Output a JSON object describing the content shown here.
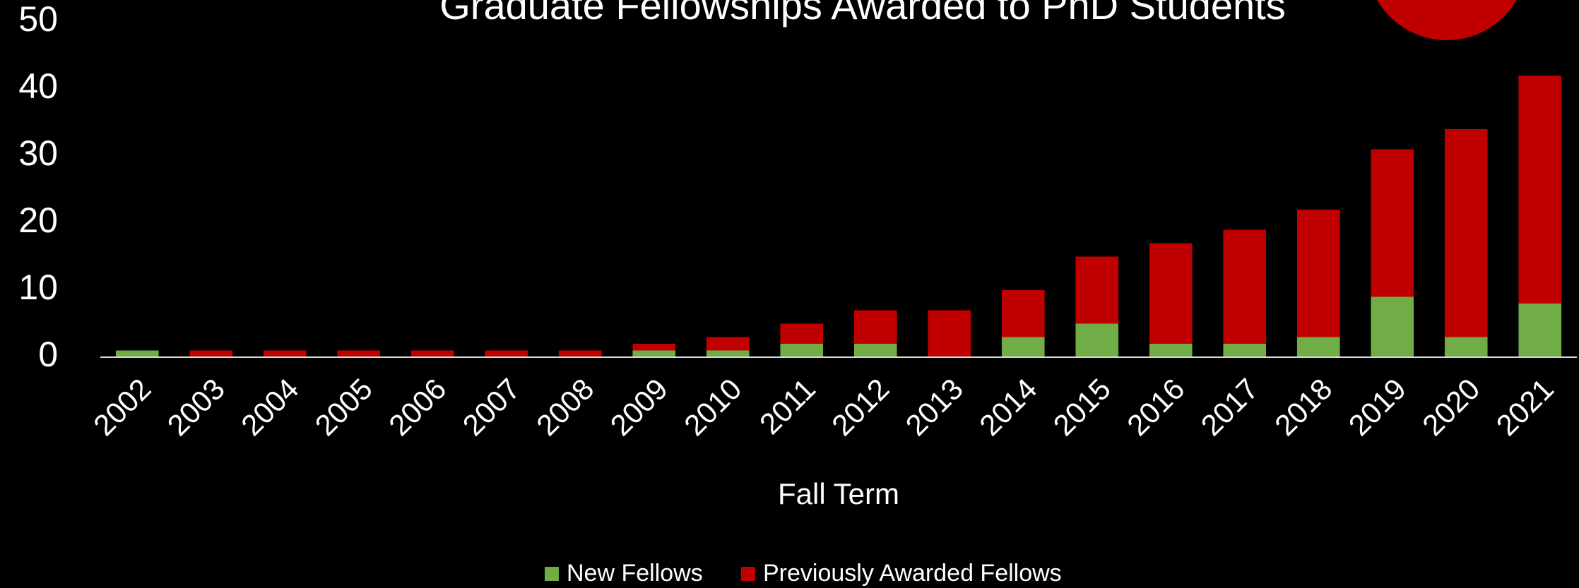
{
  "chart_data": {
    "type": "stacked_bar",
    "title": "Graduate Fellowships Awarded to PhD Students",
    "x_label": "Fall Term",
    "categories": [
      "2002",
      "2003",
      "2004",
      "2005",
      "2006",
      "2007",
      "2008",
      "2009",
      "2010",
      "2011",
      "2012",
      "2013",
      "2014",
      "2015",
      "2016",
      "2017",
      "2018",
      "2019",
      "2020",
      "2021"
    ],
    "series": [
      {
        "name": "New Fellows",
        "color": "#70ad47",
        "values": [
          1,
          0,
          0,
          0,
          0,
          0,
          0,
          1,
          1,
          2,
          2,
          0,
          3,
          5,
          2,
          2,
          3,
          9,
          3,
          8
        ]
      },
      {
        "name": "Previously Awarded Fellows",
        "color": "#c00000",
        "values": [
          0,
          1,
          1,
          1,
          1,
          1,
          1,
          1,
          2,
          3,
          5,
          7,
          7,
          10,
          15,
          17,
          19,
          22,
          31,
          34
        ]
      }
    ],
    "ylim": [
      0,
      50
    ],
    "yticks": [
      0,
      10,
      20,
      30,
      40,
      50
    ],
    "grid": false,
    "legend": "bottom"
  }
}
